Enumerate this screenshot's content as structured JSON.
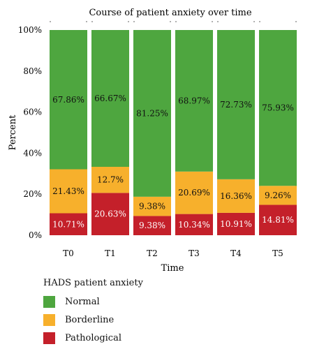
{
  "chart_data": {
    "type": "bar",
    "stacked": true,
    "title": "Course of patient anxiety over time",
    "xlabel": "Time",
    "ylabel": "Percent",
    "ylim": [
      0,
      100
    ],
    "yticks": [
      "0%",
      "20%",
      "40%",
      "60%",
      "80%",
      "100%"
    ],
    "categories": [
      "T0",
      "T1",
      "T2",
      "T3",
      "T4",
      "T5"
    ],
    "series": [
      {
        "name": "Pathological",
        "color": "#c4202a",
        "values": [
          10.71,
          20.63,
          9.38,
          10.34,
          10.91,
          14.81
        ],
        "labels": [
          "10.71%",
          "20.63%",
          "9.38%",
          "10.34%",
          "10.91%",
          "14.81%"
        ]
      },
      {
        "name": "Borderline",
        "color": "#f7b02c",
        "values": [
          21.43,
          12.7,
          9.38,
          20.69,
          16.36,
          9.26
        ],
        "labels": [
          "21.43%",
          "12.7%",
          "9.38%",
          "20.69%",
          "16.36%",
          "9.26%"
        ]
      },
      {
        "name": "Normal",
        "color": "#4ea63f",
        "values": [
          67.86,
          66.67,
          81.25,
          68.97,
          72.73,
          75.93
        ],
        "labels": [
          "67.86%",
          "66.67%",
          "81.25%",
          "68.97%",
          "72.73%",
          "75.93%"
        ]
      }
    ],
    "grid": false,
    "legend_position": "bottom-left"
  },
  "legend": {
    "title": "HADS patient anxiety",
    "items": [
      {
        "label": "Normal",
        "color": "#4ea63f"
      },
      {
        "label": "Borderline",
        "color": "#f7b02c"
      },
      {
        "label": "Pathological",
        "color": "#c4202a"
      }
    ]
  }
}
